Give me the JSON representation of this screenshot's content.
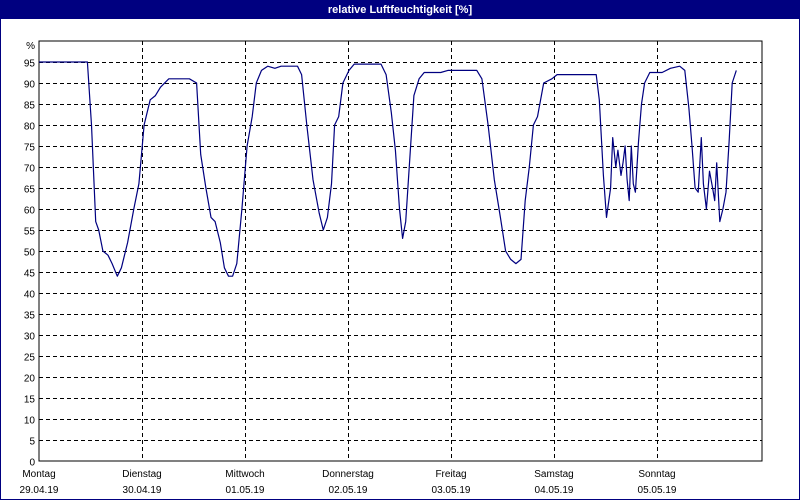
{
  "window": {
    "title": "relative Luftfeuchtigkeit [%]"
  },
  "chart_data": {
    "type": "line",
    "title": "relative Luftfeuchtigkeit [%]",
    "ylabel": "%",
    "xlabel": "",
    "ylim": [
      0,
      100
    ],
    "y_ticks": [
      0,
      5,
      10,
      15,
      20,
      25,
      30,
      35,
      40,
      45,
      50,
      55,
      60,
      65,
      70,
      75,
      80,
      85,
      90,
      95
    ],
    "xlim_days": 7,
    "day_labels": [
      {
        "day": "Montag",
        "date": "29.04.19"
      },
      {
        "day": "Dienstag",
        "date": "30.04.19"
      },
      {
        "day": "Mittwoch",
        "date": "01.05.19"
      },
      {
        "day": "Donnerstag",
        "date": "02.05.19"
      },
      {
        "day": "Freitag",
        "date": "03.05.19"
      },
      {
        "day": "Samstag",
        "date": "04.05.19"
      },
      {
        "day": "Sonntag",
        "date": "05.05.19"
      }
    ],
    "grid": true,
    "line_color": "#000080",
    "series": [
      {
        "values": [
          [
            0.0,
            95
          ],
          [
            0.47,
            95
          ],
          [
            0.51,
            80
          ],
          [
            0.55,
            57
          ],
          [
            0.58,
            55
          ],
          [
            0.62,
            50
          ],
          [
            0.67,
            49
          ],
          [
            0.71,
            47
          ],
          [
            0.76,
            44
          ],
          [
            0.8,
            46
          ],
          [
            0.86,
            52
          ],
          [
            0.92,
            60
          ],
          [
            0.97,
            66
          ],
          [
            1.02,
            80
          ],
          [
            1.08,
            86
          ],
          [
            1.13,
            87
          ],
          [
            1.18,
            89
          ],
          [
            1.26,
            91
          ],
          [
            1.46,
            91
          ],
          [
            1.53,
            90
          ],
          [
            1.57,
            73
          ],
          [
            1.62,
            65
          ],
          [
            1.67,
            58
          ],
          [
            1.71,
            57
          ],
          [
            1.76,
            52
          ],
          [
            1.8,
            46
          ],
          [
            1.84,
            44
          ],
          [
            1.88,
            44
          ],
          [
            1.92,
            47
          ],
          [
            1.97,
            60
          ],
          [
            2.02,
            75
          ],
          [
            2.07,
            82
          ],
          [
            2.11,
            90
          ],
          [
            2.16,
            93
          ],
          [
            2.22,
            94
          ],
          [
            2.29,
            93.5
          ],
          [
            2.35,
            94
          ],
          [
            2.51,
            94
          ],
          [
            2.55,
            92
          ],
          [
            2.6,
            80
          ],
          [
            2.66,
            67
          ],
          [
            2.72,
            59
          ],
          [
            2.76,
            55
          ],
          [
            2.8,
            58
          ],
          [
            2.84,
            66
          ],
          [
            2.87,
            80
          ],
          [
            2.91,
            82
          ],
          [
            2.95,
            90
          ],
          [
            3.01,
            93
          ],
          [
            3.06,
            94.5
          ],
          [
            3.32,
            94.5
          ],
          [
            3.37,
            92
          ],
          [
            3.42,
            83
          ],
          [
            3.46,
            74
          ],
          [
            3.5,
            60
          ],
          [
            3.53,
            53
          ],
          [
            3.56,
            57
          ],
          [
            3.6,
            72
          ],
          [
            3.64,
            87
          ],
          [
            3.69,
            91
          ],
          [
            3.74,
            92.5
          ],
          [
            3.9,
            92.5
          ],
          [
            3.97,
            93
          ],
          [
            4.25,
            93
          ],
          [
            4.3,
            91
          ],
          [
            4.36,
            80
          ],
          [
            4.42,
            67
          ],
          [
            4.48,
            58
          ],
          [
            4.53,
            50
          ],
          [
            4.58,
            48
          ],
          [
            4.63,
            47
          ],
          [
            4.68,
            48
          ],
          [
            4.72,
            62
          ],
          [
            4.76,
            70
          ],
          [
            4.8,
            80
          ],
          [
            4.84,
            82
          ],
          [
            4.9,
            90
          ],
          [
            4.98,
            91
          ],
          [
            5.03,
            92
          ],
          [
            5.41,
            92
          ],
          [
            5.44,
            86
          ],
          [
            5.48,
            68
          ],
          [
            5.51,
            58
          ],
          [
            5.55,
            65
          ],
          [
            5.57,
            77
          ],
          [
            5.6,
            70
          ],
          [
            5.62,
            74
          ],
          [
            5.65,
            68
          ],
          [
            5.67,
            71
          ],
          [
            5.69,
            75
          ],
          [
            5.71,
            67
          ],
          [
            5.73,
            62
          ],
          [
            5.75,
            75
          ],
          [
            5.77,
            66
          ],
          [
            5.79,
            64
          ],
          [
            5.82,
            76
          ],
          [
            5.85,
            85
          ],
          [
            5.88,
            90
          ],
          [
            5.93,
            92.5
          ],
          [
            6.05,
            92.5
          ],
          [
            6.13,
            93.5
          ],
          [
            6.22,
            94
          ],
          [
            6.27,
            93
          ],
          [
            6.31,
            84
          ],
          [
            6.34,
            75
          ],
          [
            6.37,
            65
          ],
          [
            6.4,
            64
          ],
          [
            6.43,
            77
          ],
          [
            6.45,
            66
          ],
          [
            6.48,
            60
          ],
          [
            6.51,
            69
          ],
          [
            6.54,
            65
          ],
          [
            6.56,
            62
          ],
          [
            6.58,
            71
          ],
          [
            6.61,
            57
          ],
          [
            6.64,
            60
          ],
          [
            6.67,
            64
          ],
          [
            6.7,
            76
          ],
          [
            6.73,
            90
          ],
          [
            6.77,
            93
          ]
        ]
      }
    ]
  }
}
